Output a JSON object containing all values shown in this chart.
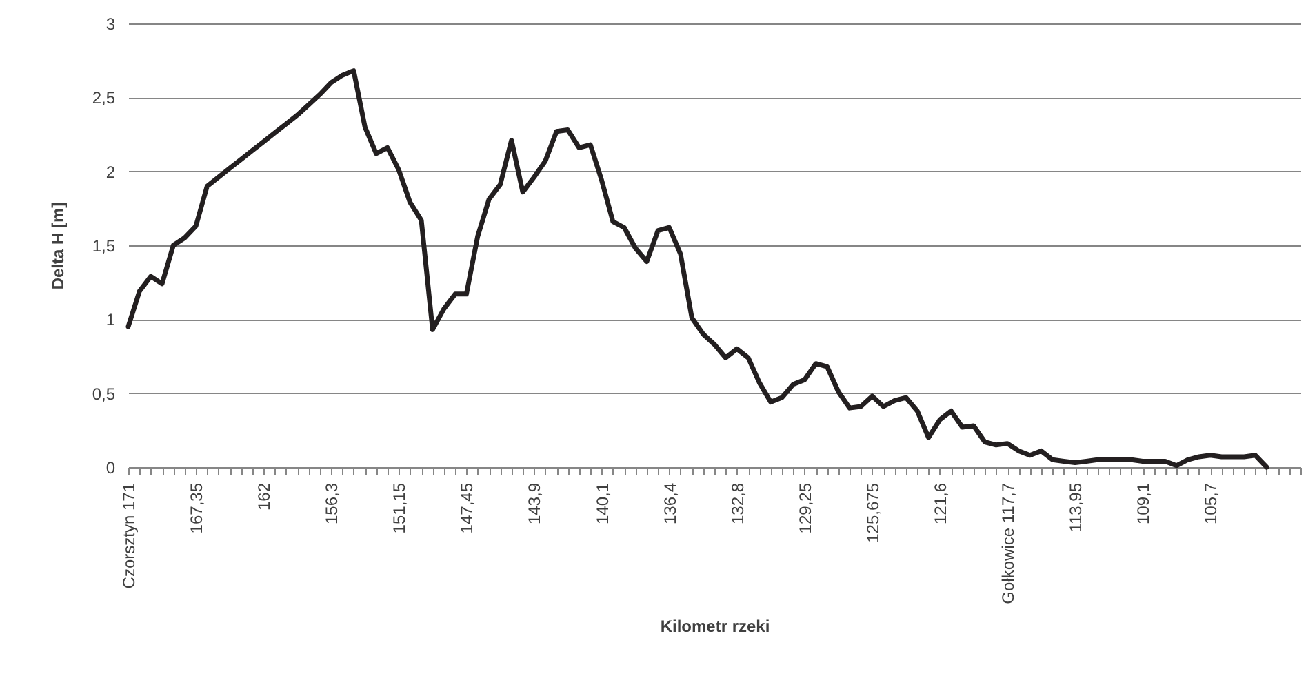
{
  "chart_data": {
    "type": "line",
    "xlabel": "Kilometr rzeki",
    "ylabel": "Delta H [m]",
    "categories": [
      "Czorsztyn  171",
      null,
      null,
      null,
      null,
      null,
      "167,35",
      null,
      null,
      null,
      null,
      null,
      "162",
      null,
      null,
      null,
      null,
      null,
      "156,3",
      null,
      null,
      null,
      null,
      null,
      "151,15",
      null,
      null,
      null,
      null,
      null,
      "147,45",
      null,
      null,
      null,
      null,
      null,
      "143,9",
      null,
      null,
      null,
      null,
      null,
      "140,1",
      null,
      null,
      null,
      null,
      null,
      "136,4",
      null,
      null,
      null,
      null,
      null,
      "132,8",
      null,
      null,
      null,
      null,
      null,
      "129,25",
      null,
      null,
      null,
      null,
      null,
      "125,675",
      null,
      null,
      null,
      null,
      null,
      "121,6",
      null,
      null,
      null,
      null,
      null,
      "Gołkowice  117,7",
      null,
      null,
      null,
      null,
      null,
      "113,95",
      null,
      null,
      null,
      null,
      null,
      "109,1",
      null,
      null,
      null,
      null,
      null,
      "105,7",
      null,
      null,
      null,
      null,
      null,
      null,
      null,
      null
    ],
    "series": [
      {
        "color": "#231f20",
        "values": [
          0.95,
          1.19,
          1.29,
          1.24,
          1.5,
          1.55,
          1.63,
          1.9,
          1.96,
          2.02,
          2.08,
          2.14,
          2.2,
          2.26,
          2.32,
          2.38,
          2.45,
          2.52,
          2.6,
          2.65,
          2.68,
          2.3,
          2.12,
          2.16,
          2.01,
          1.79,
          1.67,
          0.93,
          1.07,
          1.17,
          1.17,
          1.56,
          1.81,
          1.91,
          2.21,
          1.86,
          1.96,
          2.07,
          2.27,
          2.28,
          2.16,
          2.18,
          1.94,
          1.66,
          1.62,
          1.48,
          1.39,
          1.6,
          1.62,
          1.44,
          1.01,
          0.9,
          0.83,
          0.74,
          0.8,
          0.74,
          0.57,
          0.44,
          0.47,
          0.56,
          0.59,
          0.7,
          0.68,
          0.51,
          0.4,
          0.41,
          0.48,
          0.41,
          0.45,
          0.47,
          0.38,
          0.2,
          0.32,
          0.38,
          0.27,
          0.28,
          0.17,
          0.15,
          0.16,
          0.11,
          0.08,
          0.11,
          0.05,
          0.04,
          0.03,
          0.04,
          0.05,
          0.05,
          0.05,
          0.05,
          0.04,
          0.04,
          0.04,
          0.01,
          0.05,
          0.07,
          0.08,
          0.07,
          0.07,
          0.07,
          0.08,
          0,
          null,
          null,
          null
        ]
      }
    ],
    "ylim": [
      0,
      3
    ],
    "yticks": [
      0,
      {
        "value": 0.5,
        "label": "0,5"
      },
      1,
      {
        "value": 1.5,
        "label": "1,5"
      },
      2,
      {
        "value": 2.5,
        "label": "2,5"
      },
      3
    ],
    "grid": "y",
    "line_style": "solid",
    "marker": "none"
  }
}
